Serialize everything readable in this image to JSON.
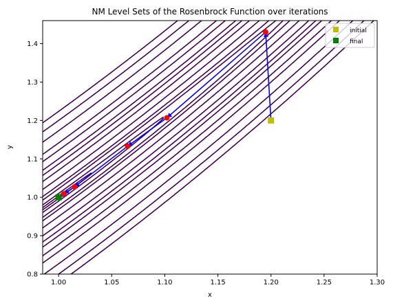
{
  "chart_data": {
    "type": "line",
    "title": "NM Level Sets of the Rosenbrock Function over iterations",
    "xlabel": "x",
    "ylabel": "y",
    "xlim": [
      0.985,
      1.3
    ],
    "ylim": [
      0.8,
      1.46
    ],
    "xticks": [
      1.0,
      1.05,
      1.1,
      1.15,
      1.2,
      1.25,
      1.3
    ],
    "xtick_labels": [
      "1.00",
      "1.05",
      "1.10",
      "1.15",
      "1.20",
      "1.25",
      "1.30"
    ],
    "yticks": [
      0.8,
      0.9,
      1.0,
      1.1,
      1.2,
      1.3,
      1.4
    ],
    "ytick_labels": [
      "0.8",
      "0.9",
      "1.0",
      "1.1",
      "1.2",
      "1.3",
      "1.4"
    ],
    "grid": false,
    "legend_position": "top-right",
    "contour_levels": [
      0.001,
      0.01,
      0.05,
      0.1,
      0.25,
      0.5,
      0.75,
      1.0,
      1.5,
      2.0,
      3.0,
      4.0,
      5.0
    ],
    "contour_color": "#440154",
    "path": {
      "color": "#0000ff",
      "x": [
        1.2,
        1.195,
        1.102,
        1.065,
        1.015,
        1.005,
        1.0
      ],
      "y": [
        1.2,
        1.43,
        1.207,
        1.133,
        1.027,
        1.009,
        1.0
      ]
    },
    "iterates": {
      "color": "#ff0000",
      "x": [
        1.195,
        1.102,
        1.065,
        1.015,
        1.005,
        1.0
      ],
      "y": [
        1.43,
        1.207,
        1.133,
        1.027,
        1.009,
        1.0
      ]
    },
    "series": [
      {
        "name": "initial",
        "marker": "square",
        "color": "#bfbf00",
        "x": [
          1.2
        ],
        "y": [
          1.2
        ]
      },
      {
        "name": "final",
        "marker": "square",
        "color": "#008000",
        "x": [
          1.0
        ],
        "y": [
          1.0
        ]
      }
    ]
  }
}
